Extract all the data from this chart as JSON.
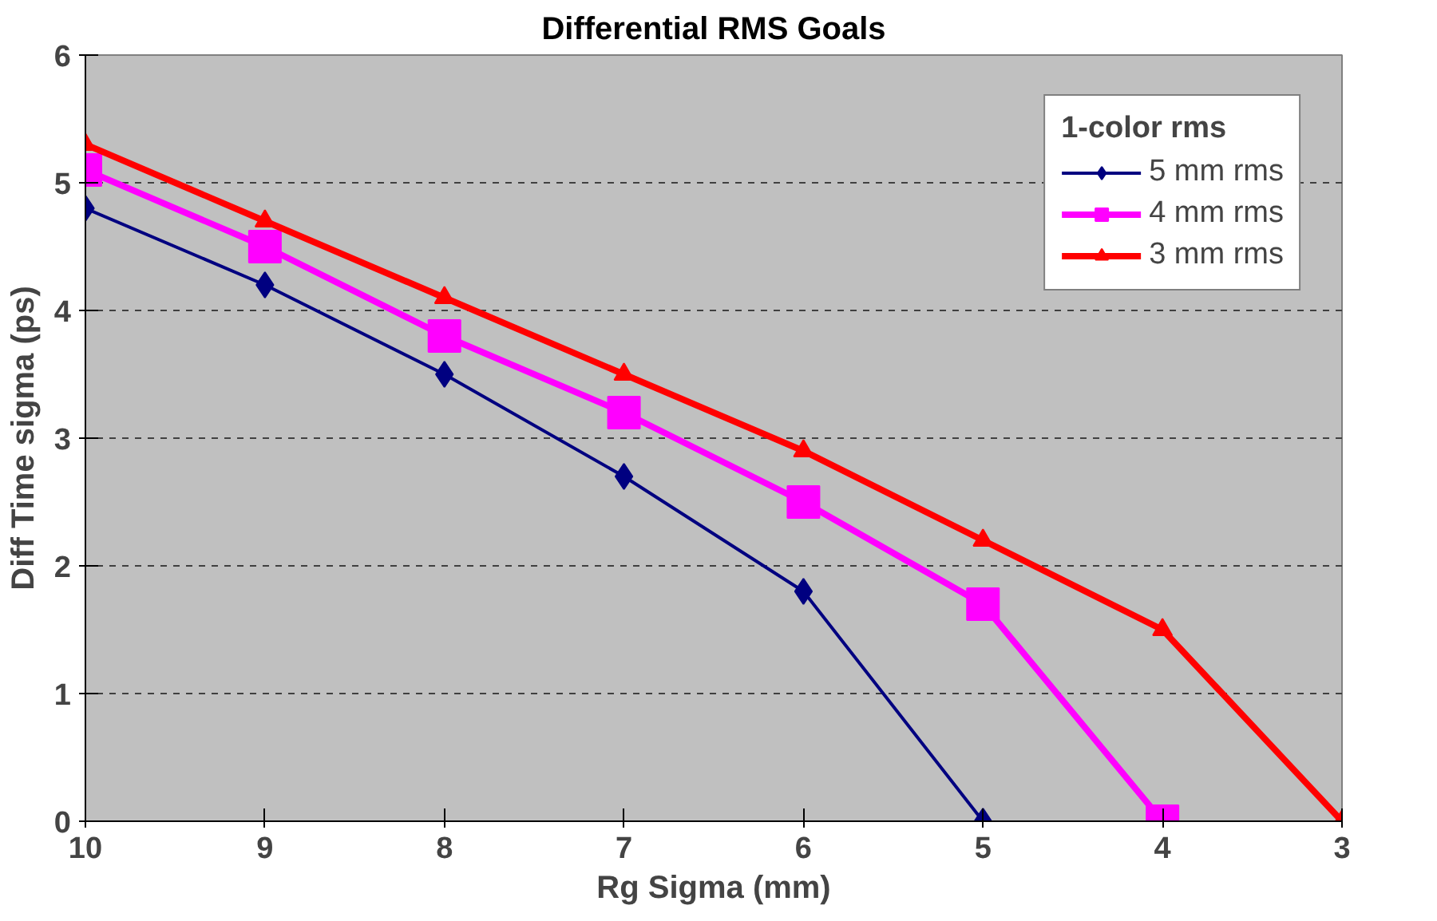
{
  "chart_data": {
    "type": "line",
    "title": "Differential RMS Goals",
    "xlabel": "Rg Sigma (mm)",
    "ylabel": "Diff Time sigma (ps)",
    "legend_title": "1-color rms",
    "xlim": [
      10,
      3
    ],
    "xticks": [
      10,
      9,
      8,
      7,
      6,
      5,
      4,
      3
    ],
    "ylim": [
      0,
      6
    ],
    "yticks": [
      0,
      1,
      2,
      3,
      4,
      5,
      6
    ],
    "grid": "y",
    "legend": "top right",
    "series": [
      {
        "name": "5 mm rms",
        "color": "#000080",
        "marker": "diamond",
        "x": [
          10,
          9,
          8,
          7,
          6,
          5
        ],
        "values": [
          4.8,
          4.2,
          3.5,
          2.7,
          1.8,
          0
        ]
      },
      {
        "name": "4 mm rms",
        "color": "#ff00ff",
        "marker": "square",
        "x": [
          10,
          9,
          8,
          7,
          6,
          5,
          4
        ],
        "values": [
          5.1,
          4.5,
          3.8,
          3.2,
          2.5,
          1.7,
          0
        ]
      },
      {
        "name": "3 mm rms",
        "color": "#ff0000",
        "marker": "triangle",
        "x": [
          10,
          9,
          8,
          7,
          6,
          5,
          4,
          3
        ],
        "values": [
          5.3,
          4.7,
          4.1,
          3.5,
          2.9,
          2.2,
          1.5,
          0
        ]
      }
    ]
  }
}
